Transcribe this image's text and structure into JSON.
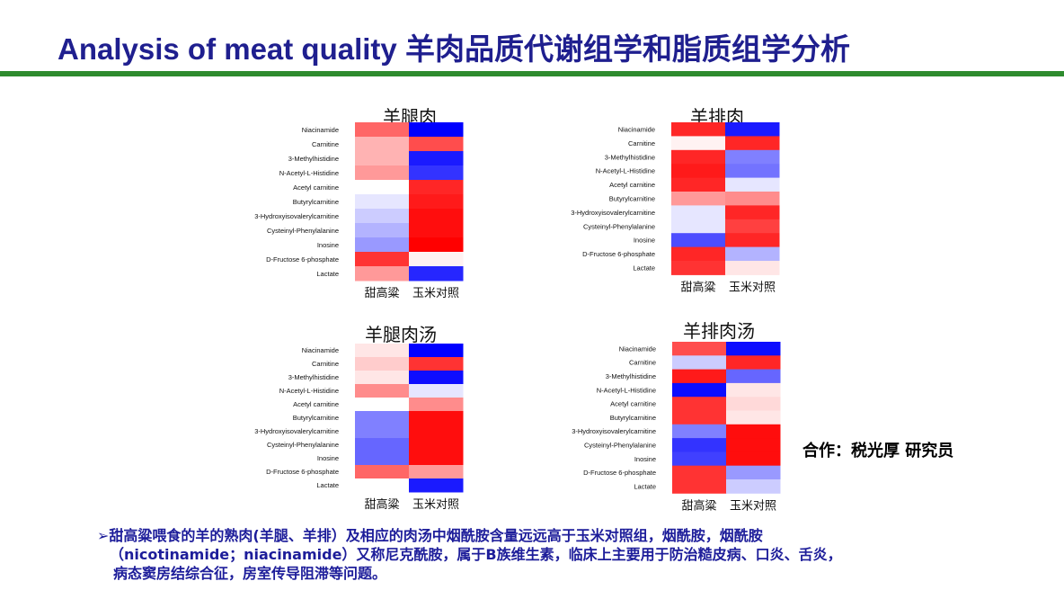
{
  "header": {
    "title": "Analysis of meat quality 羊肉品质代谢组学和脂质组学分析",
    "rule_color": "#2e8b2e"
  },
  "colors": {
    "high": "#ff0000",
    "mid": "#ffffff",
    "low": "#0000ff",
    "title": "#1f1f8f",
    "note": "#1d1d9a"
  },
  "chart_data": [
    {
      "type": "heatmap",
      "title": "羊腿肉",
      "rows": [
        "Niacinamide",
        "Carnitine",
        "3-Methylhistidine",
        "N-Acetyl-L-Histidine",
        "Acetyl carnitine",
        "Butyrylcarnitine",
        "3-Hydroxyisovalerylcarnitine",
        "Cysteinyl-Phenylalanine",
        "Inosine",
        "D-Fructose 6-phosphate",
        "Lactate"
      ],
      "columns": [
        "甜高粱",
        "玉米对照"
      ],
      "values": [
        [
          0.6,
          -1.0
        ],
        [
          0.3,
          0.7
        ],
        [
          0.3,
          -0.9
        ],
        [
          0.4,
          -0.8
        ],
        [
          0.0,
          0.85
        ],
        [
          -0.1,
          0.9
        ],
        [
          -0.2,
          0.95
        ],
        [
          -0.3,
          0.95
        ],
        [
          -0.4,
          1.0
        ],
        [
          0.8,
          0.05
        ],
        [
          0.4,
          -0.85
        ]
      ],
      "scale": [
        -1,
        1
      ]
    },
    {
      "type": "heatmap",
      "title": "羊排肉",
      "rows": [
        "Niacinamide",
        "Carnitine",
        "3-Methylhistidine",
        "N-Acetyl-L-Histidine",
        "Acetyl carnitine",
        "Butyrylcarnitine",
        "3-Hydroxyisovalerylcarnitine",
        "Cysteinyl-Phenylalanine",
        "Inosine",
        "D-Fructose 6-phosphate",
        "Lactate"
      ],
      "columns": [
        "甜高粱",
        "玉米对照"
      ],
      "values": [
        [
          0.85,
          -0.9
        ],
        [
          0.05,
          0.85
        ],
        [
          0.85,
          -0.5
        ],
        [
          0.9,
          -0.55
        ],
        [
          0.85,
          -0.1
        ],
        [
          0.4,
          0.45
        ],
        [
          -0.1,
          0.85
        ],
        [
          -0.1,
          0.75
        ],
        [
          -0.7,
          0.85
        ],
        [
          0.85,
          -0.3
        ],
        [
          0.8,
          0.1
        ]
      ],
      "scale": [
        -1,
        1
      ]
    },
    {
      "type": "heatmap",
      "title": "羊腿肉汤",
      "rows": [
        "Niacinamide",
        "Carnitine",
        "3-Methylhistidine",
        "N-Acetyl-L-Histidine",
        "Acetyl carnitine",
        "Butyrylcarnitine",
        "3-Hydroxyisovalerylcarnitine",
        "Cysteinyl-Phenylalanine",
        "Inosine",
        "D-Fructose 6-phosphate",
        "Lactate"
      ],
      "columns": [
        "甜高粱",
        "玉米对照"
      ],
      "values": [
        [
          0.1,
          -1.0
        ],
        [
          0.2,
          0.8
        ],
        [
          0.1,
          -0.95
        ],
        [
          0.45,
          -0.1
        ],
        [
          0.0,
          0.45
        ],
        [
          -0.5,
          0.95
        ],
        [
          -0.5,
          0.95
        ],
        [
          -0.6,
          0.95
        ],
        [
          -0.6,
          0.95
        ],
        [
          0.6,
          0.4
        ],
        [
          0.0,
          -0.9
        ]
      ],
      "scale": [
        -1,
        1
      ]
    },
    {
      "type": "heatmap",
      "title": "羊排肉汤",
      "rows": [
        "Niacinamide",
        "Carnitine",
        "3-Methylhistidine",
        "N-Acetyl-L-Histidine",
        "Acetyl carnitine",
        "Butyrylcarnitine",
        "3-Hydroxyisovalerylcarnitine",
        "Cysteinyl-Phenylalanine",
        "Inosine",
        "D-Fructose 6-phosphate",
        "Lactate"
      ],
      "columns": [
        "甜高粱",
        "玉米对照"
      ],
      "values": [
        [
          0.7,
          -0.95
        ],
        [
          -0.2,
          0.85
        ],
        [
          0.9,
          -0.6
        ],
        [
          -0.95,
          0.1
        ],
        [
          0.8,
          0.15
        ],
        [
          0.8,
          0.1
        ],
        [
          -0.5,
          0.95
        ],
        [
          -0.8,
          0.95
        ],
        [
          -0.75,
          0.95
        ],
        [
          0.8,
          -0.4
        ],
        [
          0.8,
          -0.2
        ]
      ],
      "scale": [
        -1,
        1
      ]
    }
  ],
  "collaboration": "合作：税光厚  研究员",
  "note": {
    "bullet": "➢",
    "lines": [
      "甜高粱喂食的羊的熟肉(羊腿、羊排）及相应的肉汤中烟酰胺含量远远高于玉米对照组，烟酰胺，烟酰胺",
      "（nicotinamide；niacinamide）又称尼克酰胺，属于B族维生素，临床上主要用于防治糙皮病、口炎、舌炎，",
      "病态窦房结综合征，房室传导阻滞等问题。"
    ]
  }
}
